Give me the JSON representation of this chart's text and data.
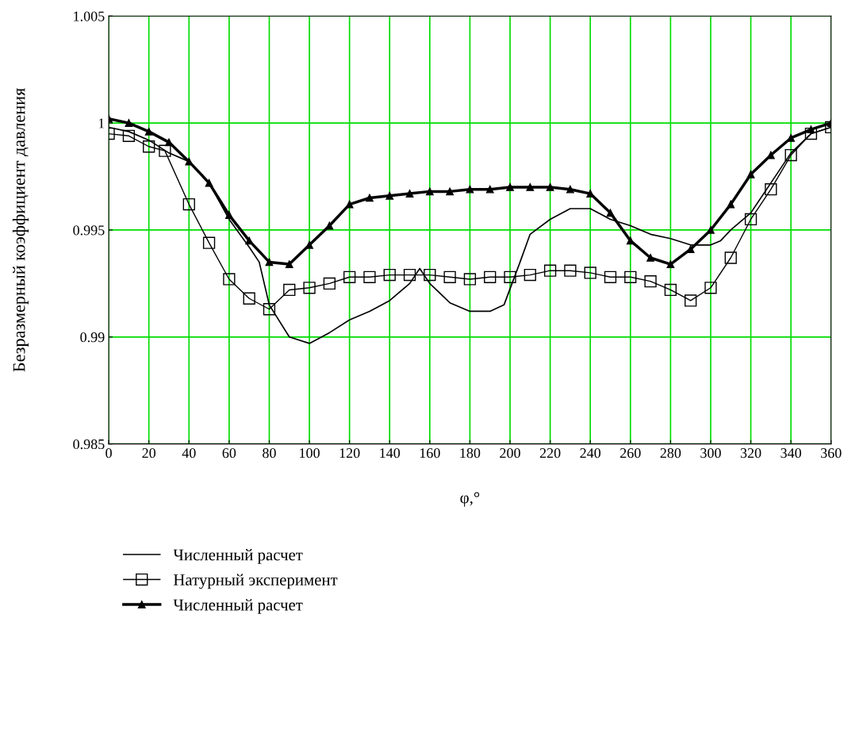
{
  "chart_data": {
    "type": "line",
    "xlabel": "φ,°",
    "ylabel": "Безразмерный коэффициент давления",
    "xlim": [
      0,
      360
    ],
    "xticks": [
      0,
      20,
      40,
      60,
      80,
      100,
      120,
      140,
      160,
      180,
      200,
      220,
      240,
      260,
      280,
      300,
      320,
      340,
      360
    ],
    "ylim": [
      0.985,
      1.005
    ],
    "yticks": [
      0.985,
      0.99,
      0.995,
      1,
      1.005
    ],
    "grid": true,
    "legend": "bottom",
    "series": [
      {
        "name": "Численный расчет",
        "color": "#000000",
        "marker": "none",
        "x": [
          0,
          10,
          20,
          30,
          40,
          50,
          60,
          70,
          75,
          80,
          90,
          100,
          110,
          120,
          130,
          140,
          150,
          155,
          160,
          170,
          180,
          190,
          197,
          205,
          210,
          220,
          230,
          240,
          250,
          260,
          270,
          280,
          290,
          300,
          305,
          310,
          320,
          330,
          340,
          350,
          360
        ],
        "values": [
          0.9998,
          0.9996,
          0.9992,
          0.9986,
          0.9982,
          0.9972,
          0.9955,
          0.9942,
          0.9935,
          0.9915,
          0.99,
          0.9897,
          0.9902,
          0.9908,
          0.9912,
          0.9917,
          0.9925,
          0.9932,
          0.9925,
          0.9916,
          0.9912,
          0.9912,
          0.9915,
          0.9935,
          0.9948,
          0.9955,
          0.996,
          0.996,
          0.9955,
          0.9952,
          0.9948,
          0.9946,
          0.9943,
          0.9943,
          0.9945,
          0.995,
          0.9958,
          0.9972,
          0.9986,
          0.9995,
          0.9998
        ]
      },
      {
        "name": "Натурный эксперимент",
        "color": "#000000",
        "marker": "square",
        "x": [
          0,
          10,
          20,
          28,
          40,
          50,
          60,
          70,
          80,
          90,
          100,
          110,
          120,
          130,
          140,
          150,
          160,
          170,
          180,
          190,
          200,
          210,
          220,
          230,
          240,
          250,
          260,
          270,
          280,
          290,
          300,
          310,
          320,
          330,
          340,
          350,
          360
        ],
        "values": [
          0.9995,
          0.9994,
          0.9989,
          0.9987,
          0.9962,
          0.9944,
          0.9927,
          0.9918,
          0.9913,
          0.9922,
          0.9923,
          0.9925,
          0.9928,
          0.9928,
          0.9929,
          0.9929,
          0.9929,
          0.9928,
          0.9927,
          0.9928,
          0.9928,
          0.9929,
          0.9931,
          0.9931,
          0.993,
          0.9928,
          0.9928,
          0.9926,
          0.9922,
          0.9917,
          0.9923,
          0.9937,
          0.9955,
          0.9969,
          0.9985,
          0.9995,
          0.9998
        ]
      },
      {
        "name": "Численный расчет",
        "color": "#000000",
        "marker": "triangle",
        "x": [
          0,
          10,
          20,
          30,
          40,
          50,
          60,
          70,
          80,
          90,
          100,
          110,
          120,
          130,
          140,
          150,
          160,
          170,
          180,
          190,
          200,
          210,
          220,
          230,
          240,
          250,
          260,
          270,
          280,
          290,
          300,
          310,
          320,
          330,
          340,
          350,
          360
        ],
        "values": [
          1.0002,
          1.0,
          0.9996,
          0.9991,
          0.9982,
          0.9972,
          0.9957,
          0.9945,
          0.9935,
          0.9934,
          0.9943,
          0.9952,
          0.9962,
          0.9965,
          0.9966,
          0.9967,
          0.9968,
          0.9968,
          0.9969,
          0.9969,
          0.997,
          0.997,
          0.997,
          0.9969,
          0.9967,
          0.9958,
          0.9945,
          0.9937,
          0.9934,
          0.9941,
          0.995,
          0.9962,
          0.9976,
          0.9985,
          0.9993,
          0.9997,
          1.0
        ]
      }
    ]
  }
}
